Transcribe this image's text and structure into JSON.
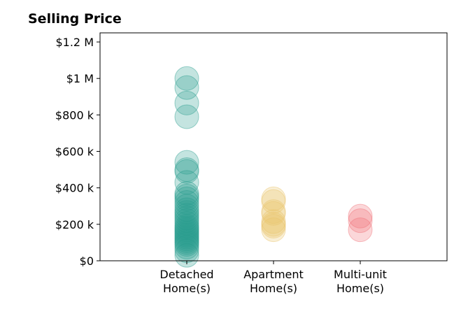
{
  "chart_data": {
    "type": "scatter",
    "title": "Selling Price",
    "xlabel": "",
    "ylabel": "",
    "categories": [
      {
        "line1": "Detached",
        "line2": "Home(s)"
      },
      {
        "line1": "Apartment",
        "line2": "Home(s)"
      },
      {
        "line1": "Multi-unit",
        "line2": "Home(s)"
      }
    ],
    "ylim": [
      0,
      1250000
    ],
    "yticks": [
      {
        "value": 0,
        "label": "$0"
      },
      {
        "value": 200000,
        "label": "$200 k"
      },
      {
        "value": 400000,
        "label": "$400 k"
      },
      {
        "value": 600000,
        "label": "$600 k"
      },
      {
        "value": 800000,
        "label": "$800 k"
      },
      {
        "value": 1000000,
        "label": "$1 M"
      },
      {
        "value": 1200000,
        "label": "$1.2 M"
      }
    ],
    "grid": false,
    "series": [
      {
        "category": 0,
        "color": "#2a9d8f",
        "values": [
          1000000,
          950000,
          865000,
          790000,
          540000,
          500000,
          490000,
          430000,
          370000,
          355000,
          340000,
          320000,
          300000,
          280000,
          265000,
          250000,
          235000,
          220000,
          205000,
          190000,
          180000,
          170000,
          160000,
          150000,
          140000,
          130000,
          120000,
          110000,
          100000,
          90000,
          75000,
          55000,
          30000
        ]
      },
      {
        "category": 1,
        "color": "#e9c46a",
        "values": [
          340000,
          325000,
          270000,
          260000,
          215000,
          200000,
          190000,
          170000
        ]
      },
      {
        "category": 2,
        "color": "#f07178",
        "values": [
          245000,
          220000,
          170000
        ]
      }
    ]
  }
}
